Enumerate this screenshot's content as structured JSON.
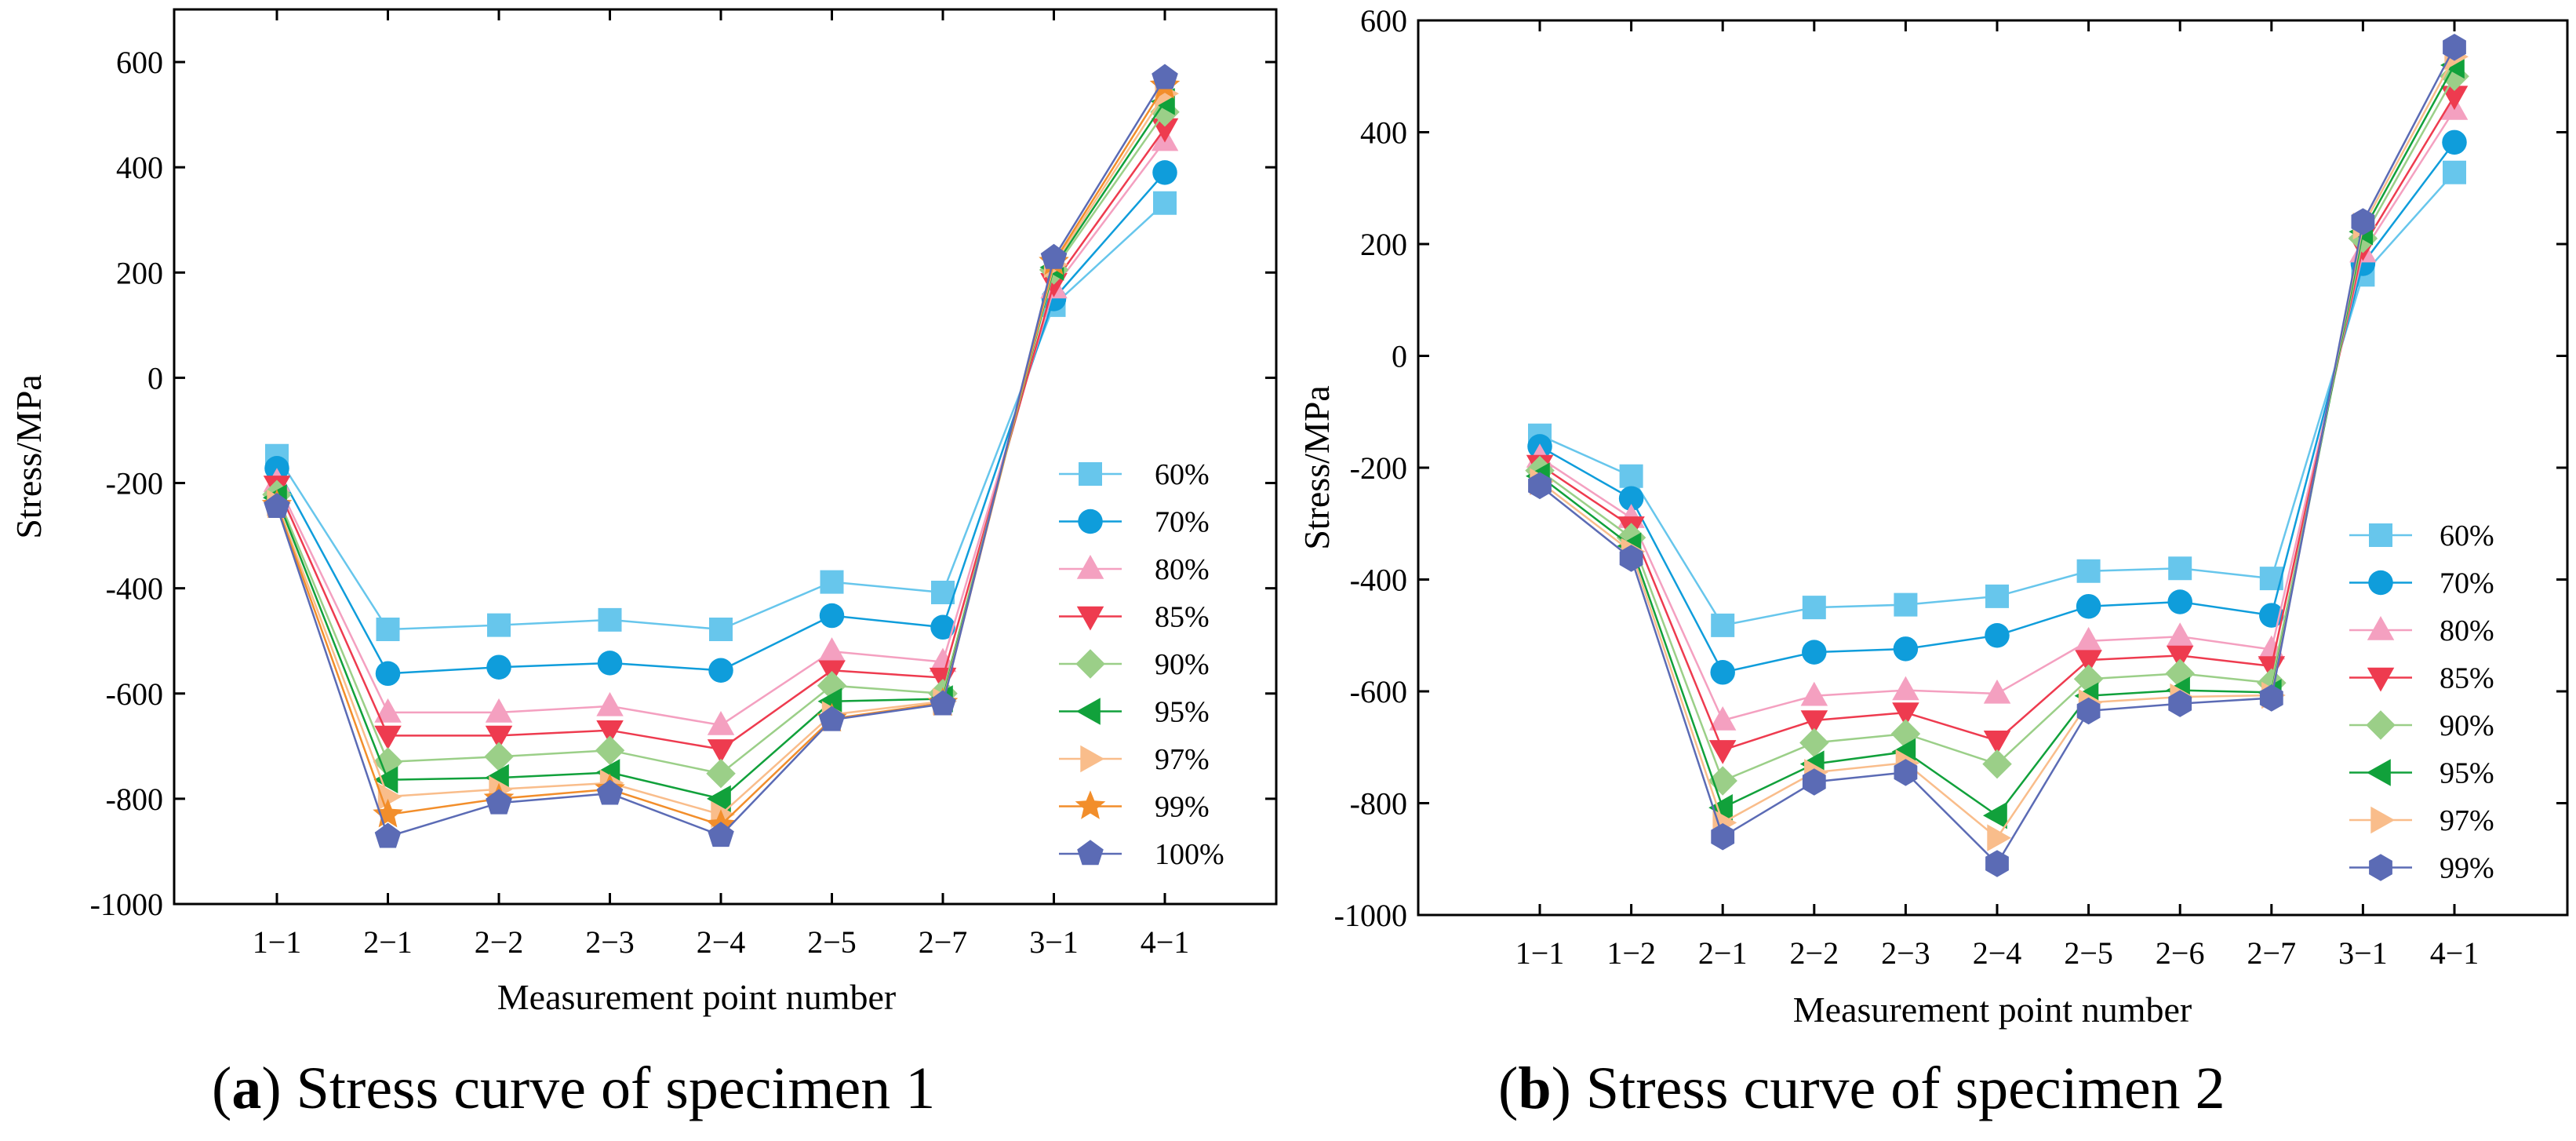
{
  "chart_data": [
    {
      "type": "line",
      "panel_label": "a",
      "caption": "Stress curve of specimen 1",
      "xlabel": "Measurement point number",
      "ylabel": "Stress/MPa",
      "ylim": [
        -1000,
        700
      ],
      "yticks": [
        -1000,
        -800,
        -600,
        -400,
        -200,
        0,
        200,
        400,
        600
      ],
      "categories": [
        "1−1",
        "2−1",
        "2−2",
        "2−3",
        "2−4",
        "2−5",
        "2−7",
        "3−1",
        "4−1"
      ],
      "legend_position": "lower-right",
      "series": [
        {
          "name": "60%",
          "color": "#67c6ec",
          "marker": "square",
          "values": [
            -148,
            -478,
            -470,
            -460,
            -478,
            -388,
            -408,
            138,
            332
          ]
        },
        {
          "name": "70%",
          "color": "#0f9ddb",
          "marker": "circle",
          "values": [
            -172,
            -562,
            -550,
            -542,
            -556,
            -452,
            -474,
            150,
            390
          ]
        },
        {
          "name": "80%",
          "color": "#f4a0c0",
          "marker": "triangle-up",
          "values": [
            -198,
            -636,
            -636,
            -624,
            -660,
            -520,
            -540,
            170,
            450
          ]
        },
        {
          "name": "85%",
          "color": "#ee3b4f",
          "marker": "triangle-down",
          "values": [
            -205,
            -680,
            -680,
            -670,
            -706,
            -556,
            -570,
            180,
            474
          ]
        },
        {
          "name": "90%",
          "color": "#9bcf88",
          "marker": "diamond",
          "values": [
            -222,
            -730,
            -720,
            -708,
            -752,
            -585,
            -600,
            205,
            505
          ]
        },
        {
          "name": "95%",
          "color": "#11a13b",
          "marker": "triangle-left",
          "values": [
            -228,
            -764,
            -760,
            -750,
            -800,
            -615,
            -610,
            210,
            525
          ]
        },
        {
          "name": "97%",
          "color": "#f9bd8b",
          "marker": "triangle-right",
          "values": [
            -238,
            -796,
            -782,
            -770,
            -830,
            -640,
            -615,
            215,
            540
          ]
        },
        {
          "name": "99%",
          "color": "#f28e2b",
          "marker": "star",
          "values": [
            -242,
            -830,
            -800,
            -782,
            -850,
            -648,
            -618,
            220,
            555
          ]
        },
        {
          "name": "100%",
          "color": "#5b6bb5",
          "marker": "pentagon",
          "values": [
            -245,
            -872,
            -808,
            -790,
            -870,
            -650,
            -620,
            228,
            570
          ]
        }
      ]
    },
    {
      "type": "line",
      "panel_label": "b",
      "caption": "Stress curve of specimen 2",
      "xlabel": "Measurement point number",
      "ylabel": "Stress/MPa",
      "ylim": [
        -1000,
        600
      ],
      "yticks": [
        -1000,
        -800,
        -600,
        -400,
        -200,
        0,
        200,
        400,
        600
      ],
      "categories": [
        "1−1",
        "1−2",
        "2−1",
        "2−2",
        "2−3",
        "2−4",
        "2−5",
        "2−6",
        "2−7",
        "3−1",
        "4−1"
      ],
      "legend_position": "lower-right",
      "series": [
        {
          "name": "60%",
          "color": "#67c6ec",
          "marker": "square",
          "values": [
            -142,
            -215,
            -482,
            -450,
            -445,
            -430,
            -385,
            -380,
            -398,
            145,
            328
          ]
        },
        {
          "name": "70%",
          "color": "#0f9ddb",
          "marker": "circle",
          "values": [
            -162,
            -255,
            -566,
            -530,
            -524,
            -500,
            -448,
            -440,
            -464,
            165,
            382
          ]
        },
        {
          "name": "80%",
          "color": "#f4a0c0",
          "marker": "triangle-up",
          "values": [
            -182,
            -290,
            -652,
            -608,
            -598,
            -604,
            -510,
            -502,
            -525,
            185,
            440
          ]
        },
        {
          "name": "85%",
          "color": "#ee3b4f",
          "marker": "triangle-down",
          "values": [
            -195,
            -305,
            -705,
            -652,
            -638,
            -688,
            -544,
            -536,
            -555,
            195,
            465
          ]
        },
        {
          "name": "90%",
          "color": "#9bcf88",
          "marker": "diamond",
          "values": [
            -205,
            -325,
            -760,
            -692,
            -676,
            -730,
            -578,
            -568,
            -585,
            210,
            500
          ]
        },
        {
          "name": "95%",
          "color": "#11a13b",
          "marker": "triangle-left",
          "values": [
            -215,
            -340,
            -808,
            -730,
            -708,
            -822,
            -608,
            -598,
            -602,
            222,
            520
          ]
        },
        {
          "name": "97%",
          "color": "#f9bd8b",
          "marker": "triangle-right",
          "values": [
            -225,
            -350,
            -835,
            -745,
            -728,
            -862,
            -620,
            -610,
            -607,
            232,
            535
          ]
        },
        {
          "name": "99%",
          "color": "#5b6bb5",
          "marker": "hexagon",
          "values": [
            -232,
            -362,
            -860,
            -762,
            -745,
            -908,
            -635,
            -622,
            -612,
            240,
            552
          ]
        }
      ]
    }
  ]
}
